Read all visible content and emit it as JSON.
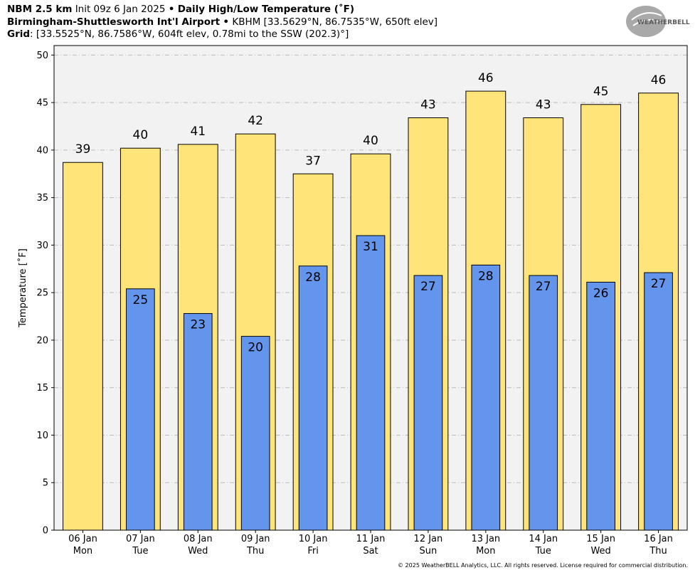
{
  "header": {
    "line1_bold": "NBM 2.5 km",
    "line1_init": "Init 09z 6 Jan 2025",
    "line1_sep": "•",
    "line1_title": "Daily High/Low Temperature (˚F)",
    "line2_station": "Birmingham-Shuttlesworth Int'l Airport",
    "line2_sep": "•",
    "line2_info": "KBHM [33.5629°N, 86.7535°W, 650ft elev]",
    "line3_label": "Grid",
    "line3_info": ": [33.5525°N, 86.7586°W, 604ft elev, 0.78mi to the SSW (202.3)°]"
  },
  "logo_text": "WEATHERBELL",
  "copyright": "© 2025 WeatherBELL Analytics, LLC. All rights reserved. License required for commercial distribution.",
  "colors": {
    "high": "#FFE47A",
    "low": "#6495ED",
    "plot_bg": "#F2F2F2",
    "grid": "#BBBBBB"
  },
  "chart_data": {
    "type": "bar",
    "ylabel": "Temperature [˚F]",
    "ylim": [
      0,
      51
    ],
    "yticks": [
      0,
      5,
      10,
      15,
      20,
      25,
      30,
      35,
      40,
      45,
      50
    ],
    "grid": true,
    "categories": [
      [
        "06 Jan",
        "Mon"
      ],
      [
        "07 Jan",
        "Tue"
      ],
      [
        "08 Jan",
        "Wed"
      ],
      [
        "09 Jan",
        "Thu"
      ],
      [
        "10 Jan",
        "Fri"
      ],
      [
        "11 Jan",
        "Sat"
      ],
      [
        "12 Jan",
        "Sun"
      ],
      [
        "13 Jan",
        "Mon"
      ],
      [
        "14 Jan",
        "Tue"
      ],
      [
        "15 Jan",
        "Wed"
      ],
      [
        "16 Jan",
        "Thu"
      ]
    ],
    "series": [
      {
        "key": "high",
        "values": [
          38.7,
          40.2,
          40.6,
          41.7,
          37.5,
          39.6,
          43.4,
          46.2,
          43.4,
          44.8,
          46.0
        ],
        "labels": [
          "39",
          "40",
          "41",
          "42",
          "37",
          "40",
          "43",
          "46",
          "43",
          "45",
          "46"
        ]
      },
      {
        "key": "low",
        "values": [
          null,
          25.4,
          22.8,
          20.4,
          27.8,
          31.0,
          26.8,
          27.9,
          26.8,
          26.1,
          27.1
        ],
        "labels": [
          "",
          "25",
          "23",
          "20",
          "28",
          "31",
          "27",
          "28",
          "27",
          "26",
          "27"
        ]
      }
    ]
  }
}
